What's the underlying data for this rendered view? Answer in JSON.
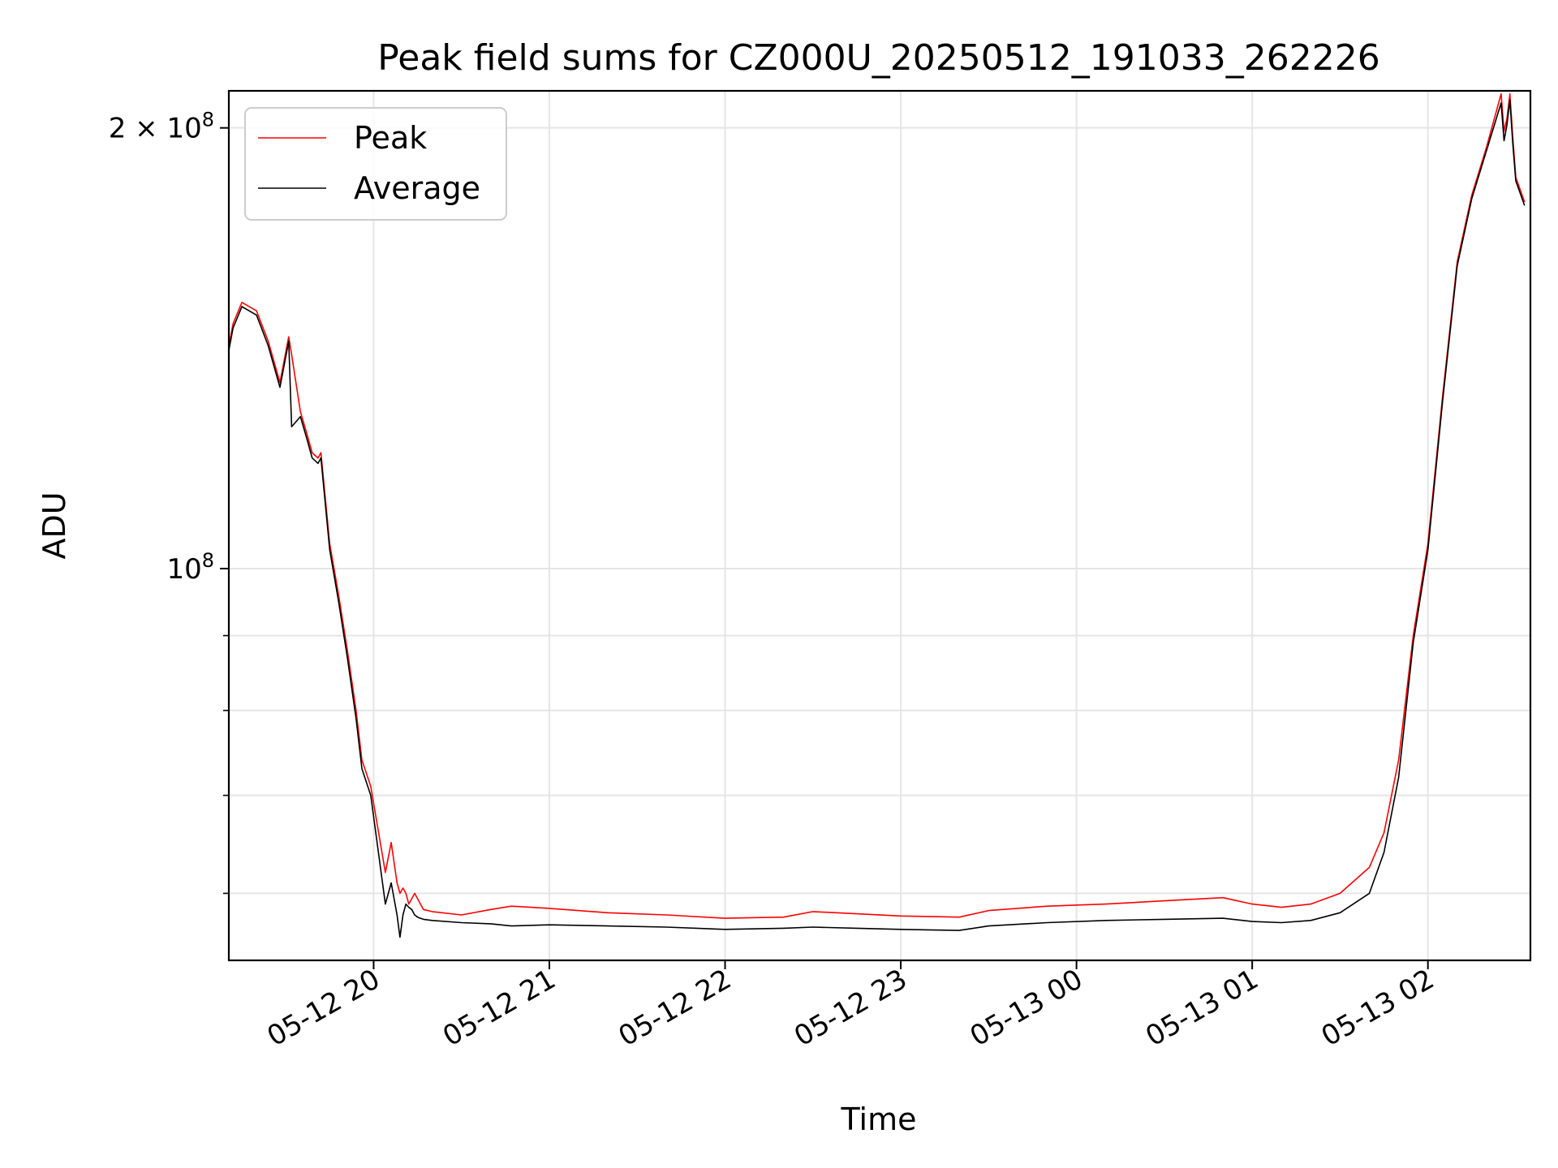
{
  "chart_data": {
    "type": "line",
    "title": "Peak field sums for CZ000U_20250512_191033_262226",
    "xlabel": "Time",
    "ylabel": "ADU",
    "yscale": "log",
    "ylim": [
      54000000,
      212000000
    ],
    "xlim": [
      "2025-05-12 19:10:33",
      "2025-05-13 02:35:00"
    ],
    "grid": true,
    "legend": {
      "position": "top-left"
    },
    "x_ticks": [
      {
        "t": "2025-05-12 20:00",
        "label": "05-12 20"
      },
      {
        "t": "2025-05-12 21:00",
        "label": "05-12 21"
      },
      {
        "t": "2025-05-12 22:00",
        "label": "05-12 22"
      },
      {
        "t": "2025-05-12 23:00",
        "label": "05-12 23"
      },
      {
        "t": "2025-05-13 00:00",
        "label": "05-13 00"
      },
      {
        "t": "2025-05-13 01:00",
        "label": "05-13 01"
      },
      {
        "t": "2025-05-13 02:00",
        "label": "05-13 02"
      }
    ],
    "y_ticks": [
      {
        "value": 200000000,
        "mantissa": "2",
        "times": "×",
        "base": "10",
        "exp": "8"
      },
      {
        "value": 100000000,
        "mantissa": "",
        "times": "",
        "base": "10",
        "exp": "8"
      }
    ],
    "y_minor_ticks": [
      60000000,
      70000000,
      80000000,
      90000000
    ],
    "x": [
      "2025-05-12 19:10",
      "2025-05-12 19:12",
      "2025-05-12 19:15",
      "2025-05-12 19:20",
      "2025-05-12 19:24",
      "2025-05-12 19:28",
      "2025-05-12 19:31",
      "2025-05-12 19:32",
      "2025-05-12 19:35",
      "2025-05-12 19:37",
      "2025-05-12 19:39",
      "2025-05-12 19:41",
      "2025-05-12 19:42",
      "2025-05-12 19:45",
      "2025-05-12 19:48",
      "2025-05-12 19:51",
      "2025-05-12 19:54",
      "2025-05-12 19:56",
      "2025-05-12 19:59",
      "2025-05-12 20:04",
      "2025-05-12 20:06",
      "2025-05-12 20:08",
      "2025-05-12 20:09",
      "2025-05-12 20:10",
      "2025-05-12 20:11",
      "2025-05-12 20:12",
      "2025-05-12 20:13",
      "2025-05-12 20:14",
      "2025-05-12 20:15",
      "2025-05-12 20:16",
      "2025-05-12 20:17",
      "2025-05-12 20:20",
      "2025-05-12 20:30",
      "2025-05-12 20:40",
      "2025-05-12 20:47",
      "2025-05-12 21:00",
      "2025-05-12 21:20",
      "2025-05-12 21:40",
      "2025-05-12 22:00",
      "2025-05-12 22:20",
      "2025-05-12 22:30",
      "2025-05-12 22:45",
      "2025-05-12 23:00",
      "2025-05-12 23:20",
      "2025-05-12 23:30",
      "2025-05-12 23:50",
      "2025-05-13 00:10",
      "2025-05-13 00:30",
      "2025-05-13 00:50",
      "2025-05-13 01:00",
      "2025-05-13 01:10",
      "2025-05-13 01:20",
      "2025-05-13 01:30",
      "2025-05-13 01:40",
      "2025-05-13 01:45",
      "2025-05-13 01:50",
      "2025-05-13 01:55",
      "2025-05-13 02:00",
      "2025-05-13 02:05",
      "2025-05-13 02:10",
      "2025-05-13 02:15",
      "2025-05-13 02:20",
      "2025-05-13 02:25",
      "2025-05-13 02:26",
      "2025-05-13 02:27",
      "2025-05-13 02:28",
      "2025-05-13 02:29",
      "2025-05-13 02:30",
      "2025-05-13 02:33"
    ],
    "series": [
      {
        "name": "Peak",
        "color": "#ff0000",
        "values": [
          140000000,
          147000000,
          152000000,
          150000000,
          143000000,
          134000000,
          144000000,
          140000000,
          128000000,
          124000000,
          120000000,
          119000000,
          120000000,
          104000000,
          96000000,
          88000000,
          80000000,
          74000000,
          71000000,
          62000000,
          65000000,
          61000000,
          60000000,
          60500000,
          60000000,
          59000000,
          59500000,
          60000000,
          59500000,
          59000000,
          58500000,
          58300000,
          58000000,
          58500000,
          58800000,
          58600000,
          58200000,
          58000000,
          57700000,
          57800000,
          58300000,
          58100000,
          57900000,
          57800000,
          58400000,
          58800000,
          59000000,
          59300000,
          59600000,
          59000000,
          58700000,
          59000000,
          60000000,
          62500000,
          66000000,
          74000000,
          90000000,
          104000000,
          131000000,
          162000000,
          180000000,
          194000000,
          211000000,
          199000000,
          203000000,
          211000000,
          197000000,
          185000000,
          178000000
        ]
      },
      {
        "name": "Average",
        "color": "#000000",
        "values": [
          139000000,
          146000000,
          151000000,
          149000000,
          142000000,
          133000000,
          143000000,
          125000000,
          127000000,
          123000000,
          119000000,
          118000000,
          119000000,
          103000000,
          95000000,
          87000000,
          79000000,
          73000000,
          70000000,
          59000000,
          61000000,
          58000000,
          56000000,
          58000000,
          59000000,
          58700000,
          58500000,
          58000000,
          57800000,
          57700000,
          57600000,
          57500000,
          57300000,
          57200000,
          57000000,
          57100000,
          57000000,
          56900000,
          56700000,
          56800000,
          56900000,
          56800000,
          56700000,
          56600000,
          57000000,
          57300000,
          57500000,
          57600000,
          57700000,
          57400000,
          57300000,
          57500000,
          58200000,
          60000000,
          64000000,
          72000000,
          89000000,
          103000000,
          130000000,
          161000000,
          179000000,
          193000000,
          208000000,
          196000000,
          201000000,
          209000000,
          195000000,
          184000000,
          177000000
        ]
      }
    ]
  }
}
